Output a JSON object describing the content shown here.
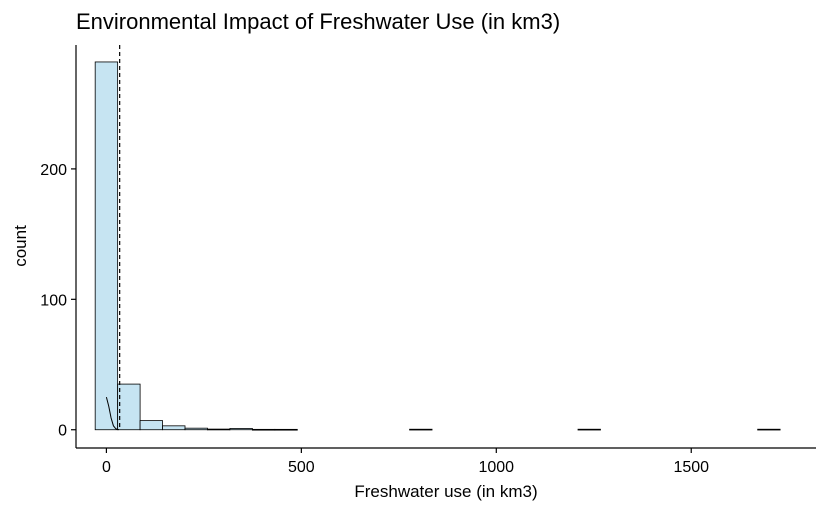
{
  "chart_data": {
    "type": "bar",
    "title": "Environmental Impact of Freshwater Use (in km3)",
    "xlabel": "Freshwater use (in km3)",
    "ylabel": "count",
    "xlim": [
      -78,
      1820
    ],
    "ylim": [
      -14,
      295
    ],
    "x_ticks": [
      0,
      500,
      1000,
      1500
    ],
    "y_ticks": [
      0,
      100,
      200
    ],
    "bin_width": 57.6,
    "bins": [
      {
        "start": -28.8,
        "end": 28.8,
        "count": 282
      },
      {
        "start": 28.8,
        "end": 86.4,
        "count": 35
      },
      {
        "start": 86.4,
        "end": 144.0,
        "count": 7
      },
      {
        "start": 144.0,
        "end": 201.6,
        "count": 3
      },
      {
        "start": 201.6,
        "end": 259.2,
        "count": 1.2
      },
      {
        "start": 259.2,
        "end": 316.8,
        "count": 0.5
      },
      {
        "start": 316.8,
        "end": 374.4,
        "count": 1
      },
      {
        "start": 374.4,
        "end": 432.0,
        "count": 0.3
      },
      {
        "start": 432.0,
        "end": 489.6,
        "count": 0.3
      },
      {
        "start": 777.6,
        "end": 835.2,
        "count": 0.4
      },
      {
        "start": 1209.6,
        "end": 1267.2,
        "count": 0.4
      },
      {
        "start": 1670.4,
        "end": 1728.0,
        "count": 0.4
      }
    ],
    "mean_line_x": 34,
    "density_line": {
      "x": [
        0,
        6,
        12,
        18,
        24,
        32
      ],
      "y": [
        25,
        18,
        9,
        3,
        0.8,
        0
      ]
    },
    "grid": false,
    "legend": "none",
    "colors": {
      "bar_fill": "#c6e4f2",
      "bar_stroke": "#000000",
      "mean_line": "#000000"
    }
  }
}
